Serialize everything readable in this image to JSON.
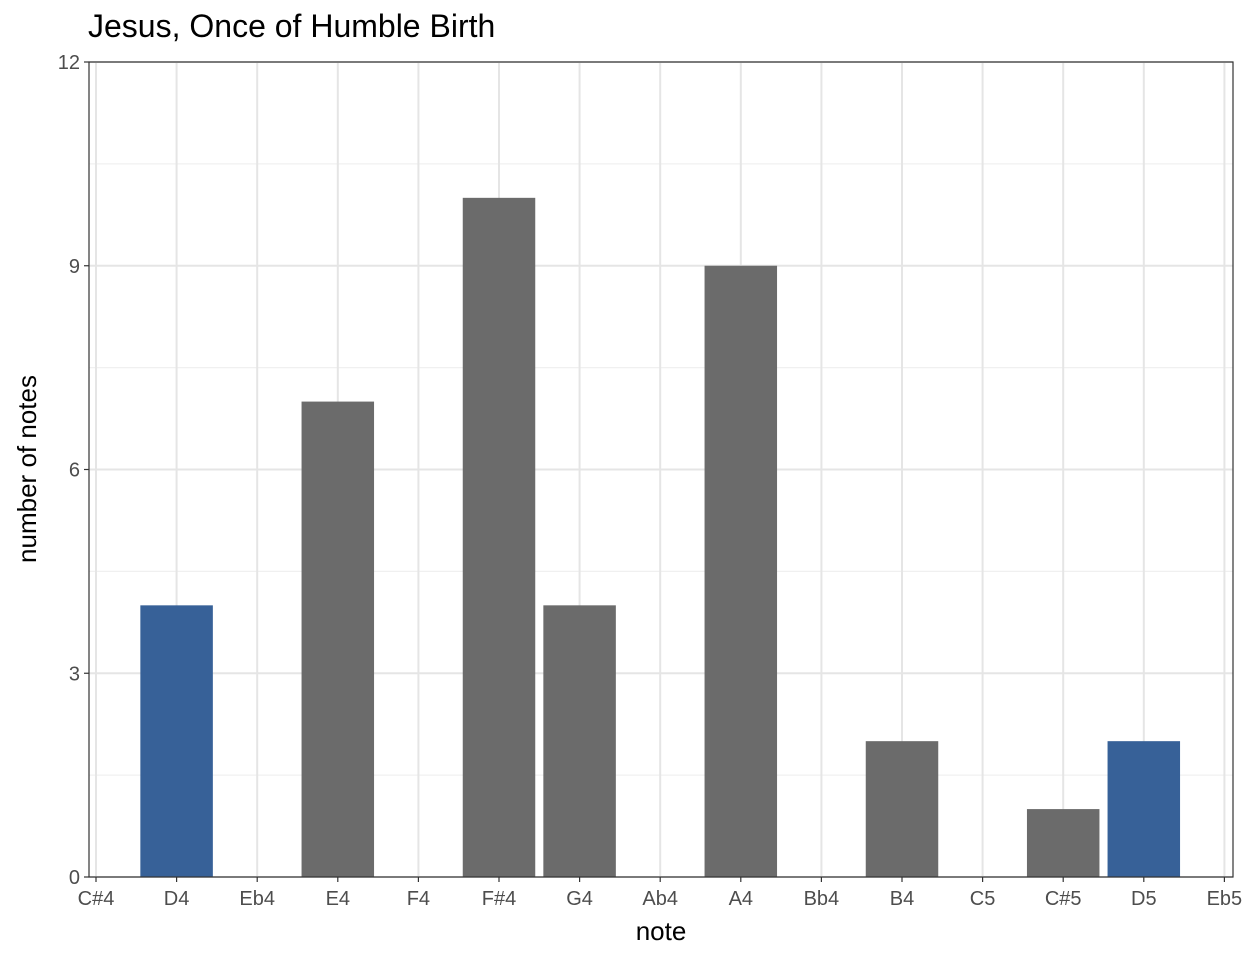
{
  "chart_data": {
    "type": "bar",
    "title": "Jesus, Once of Humble Birth",
    "xlabel": "note",
    "ylabel": "number of notes",
    "categories": [
      "C#4",
      "D4",
      "Eb4",
      "E4",
      "F4",
      "F#4",
      "G4",
      "Ab4",
      "A4",
      "Bb4",
      "B4",
      "C5",
      "C#5",
      "D5",
      "Eb5"
    ],
    "values": [
      0,
      4,
      0,
      7,
      0,
      10,
      4,
      0,
      9,
      0,
      2,
      0,
      1,
      2,
      0
    ],
    "highlighted": [
      "D4",
      "D5"
    ],
    "colors": {
      "default": "#6b6b6b",
      "highlight": "#376198"
    },
    "ylim": [
      0,
      12
    ],
    "yticks": [
      0,
      3,
      6,
      9,
      12
    ],
    "grid": true,
    "legend": "none"
  }
}
